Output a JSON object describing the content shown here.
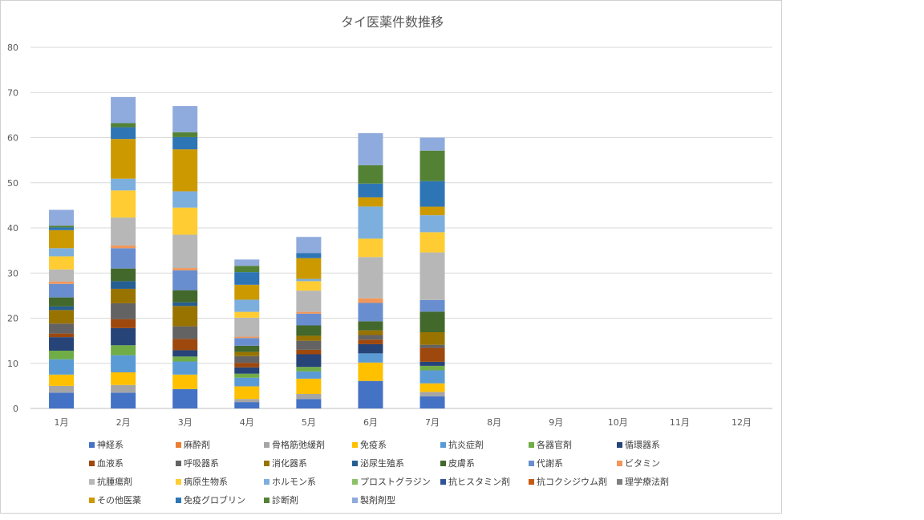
{
  "chart_data": {
    "type": "bar",
    "stacked": true,
    "title": "タイ医薬件数推移",
    "xlabel": "",
    "ylabel": "",
    "ylim": [
      0,
      80
    ],
    "yticks": [
      0,
      10,
      20,
      30,
      40,
      50,
      60,
      70,
      80
    ],
    "grid": true,
    "legend_position": "bottom",
    "categories": [
      "1月",
      "2月",
      "3月",
      "4月",
      "5月",
      "6月",
      "7月",
      "8月",
      "9月",
      "10月",
      "11月",
      "12月"
    ],
    "totals": [
      44,
      69,
      67,
      33,
      38,
      61,
      60,
      0,
      0,
      0,
      0,
      0
    ],
    "series": [
      {
        "name": "神経系",
        "color": "#4472C4",
        "values": [
          3.5,
          3.5,
          4.3,
          1.4,
          2.1,
          6,
          2.7,
          0,
          0,
          0,
          0,
          0
        ]
      },
      {
        "name": "麻酔剤",
        "color": "#ED7D31",
        "values": [
          0,
          0,
          0,
          0,
          0,
          0,
          0,
          0,
          0,
          0,
          0,
          0
        ]
      },
      {
        "name": "骨格筋弛緩剤",
        "color": "#A5A5A5",
        "values": [
          1.5,
          1.7,
          0,
          0.7,
          1.1,
          0,
          1.0,
          0,
          0,
          0,
          0,
          0
        ]
      },
      {
        "name": "免疫系",
        "color": "#FFC000",
        "values": [
          2.5,
          2.8,
          3.2,
          2.8,
          3.4,
          4,
          1.9,
          0,
          0,
          0,
          0,
          0
        ]
      },
      {
        "name": "抗炎症剤",
        "color": "#5B9BD5",
        "values": [
          3.4,
          3.8,
          2.9,
          1.9,
          1.6,
          2,
          2.9,
          0,
          0,
          0,
          0,
          0
        ]
      },
      {
        "name": "各器官剤",
        "color": "#70AD47",
        "values": [
          1.9,
          2.2,
          1.1,
          0.9,
          1.0,
          0,
          1.0,
          0,
          0,
          0,
          0,
          0
        ]
      },
      {
        "name": "循環器系",
        "color": "#264478",
        "values": [
          3.0,
          3.8,
          1.4,
          1.4,
          2.8,
          2,
          0.9,
          0,
          0,
          0,
          0,
          0
        ]
      },
      {
        "name": "血液系",
        "color": "#9E480E",
        "values": [
          0.8,
          2.0,
          2.5,
          1.0,
          1.0,
          1,
          3.1,
          0,
          0,
          0,
          0,
          0
        ]
      },
      {
        "name": "呼吸器系",
        "color": "#636363",
        "values": [
          2.2,
          3.5,
          2.8,
          1.5,
          2.0,
          1,
          0.7,
          0,
          0,
          0,
          0,
          0
        ]
      },
      {
        "name": "消化器系",
        "color": "#997300",
        "values": [
          3.0,
          3.2,
          4.5,
          0.9,
          1.1,
          1,
          2.8,
          0,
          0,
          0,
          0,
          0
        ]
      },
      {
        "name": "泌尿生殖系",
        "color": "#255E91",
        "values": [
          0.8,
          1.7,
          0.8,
          0,
          0,
          0,
          0,
          0,
          0,
          0,
          0,
          0
        ]
      },
      {
        "name": "皮膚系",
        "color": "#43682B",
        "values": [
          2.0,
          2.8,
          2.7,
          1.4,
          2.3,
          2,
          4.6,
          0,
          0,
          0,
          0,
          0
        ]
      },
      {
        "name": "代謝系",
        "color": "#698ED0",
        "values": [
          3.0,
          4.5,
          4.4,
          1.7,
          2.6,
          4,
          2.6,
          0,
          0,
          0,
          0,
          0
        ]
      },
      {
        "name": "ビタミン",
        "color": "#F1975A",
        "values": [
          0.5,
          0.6,
          0.5,
          0.3,
          0.4,
          1,
          0,
          0,
          0,
          0,
          0,
          0
        ]
      },
      {
        "name": "抗腫瘍剤",
        "color": "#B7B7B7",
        "values": [
          2.7,
          6.2,
          7.4,
          4.2,
          4.7,
          9,
          10.6,
          0,
          0,
          0,
          0,
          0
        ]
      },
      {
        "name": "病原生物系",
        "color": "#FFCD33",
        "values": [
          2.9,
          6.0,
          6.0,
          1.3,
          2.1,
          4,
          4.5,
          0,
          0,
          0,
          0,
          0
        ]
      },
      {
        "name": "ホルモン系",
        "color": "#7CAFDD",
        "values": [
          1.8,
          2.6,
          3.6,
          2.7,
          0.5,
          7,
          3.8,
          0,
          0,
          0,
          0,
          0
        ]
      },
      {
        "name": "プロストグラジン",
        "color": "#8CC168",
        "values": [
          0,
          0,
          0,
          0,
          0,
          0,
          0,
          0,
          0,
          0,
          0,
          0
        ]
      },
      {
        "name": "抗ヒスタミン剤",
        "color": "#2F5597",
        "values": [
          0,
          0,
          0,
          0,
          0,
          0,
          0,
          0,
          0,
          0,
          0,
          0
        ]
      },
      {
        "name": "抗コクシジウム剤",
        "color": "#C55A11",
        "values": [
          0,
          0,
          0,
          0,
          0,
          0,
          0,
          0,
          0,
          0,
          0,
          0
        ]
      },
      {
        "name": "理学療法剤",
        "color": "#7F7F7F",
        "values": [
          0,
          0,
          0,
          0,
          0,
          0,
          0,
          0,
          0,
          0,
          0,
          0
        ]
      },
      {
        "name": "その他医薬",
        "color": "#CC9A00",
        "values": [
          4.0,
          8.8,
          9.3,
          3.3,
          4.6,
          2,
          1.9,
          0,
          0,
          0,
          0,
          0
        ]
      },
      {
        "name": "免疫グロブリン",
        "color": "#2E75B6",
        "values": [
          0.6,
          2.6,
          2.7,
          2.8,
          1.1,
          3,
          5.7,
          0,
          0,
          0,
          0,
          0
        ]
      },
      {
        "name": "診断剤",
        "color": "#548235",
        "values": [
          0.4,
          0.9,
          1.1,
          1.4,
          0,
          4,
          6.8,
          0,
          0,
          0,
          0,
          0
        ]
      },
      {
        "name": "製剤剤型",
        "color": "#8FAADC",
        "values": [
          3.5,
          5.8,
          5.8,
          1.4,
          3.6,
          7,
          2.9,
          0,
          0,
          0,
          0,
          0
        ]
      }
    ]
  }
}
